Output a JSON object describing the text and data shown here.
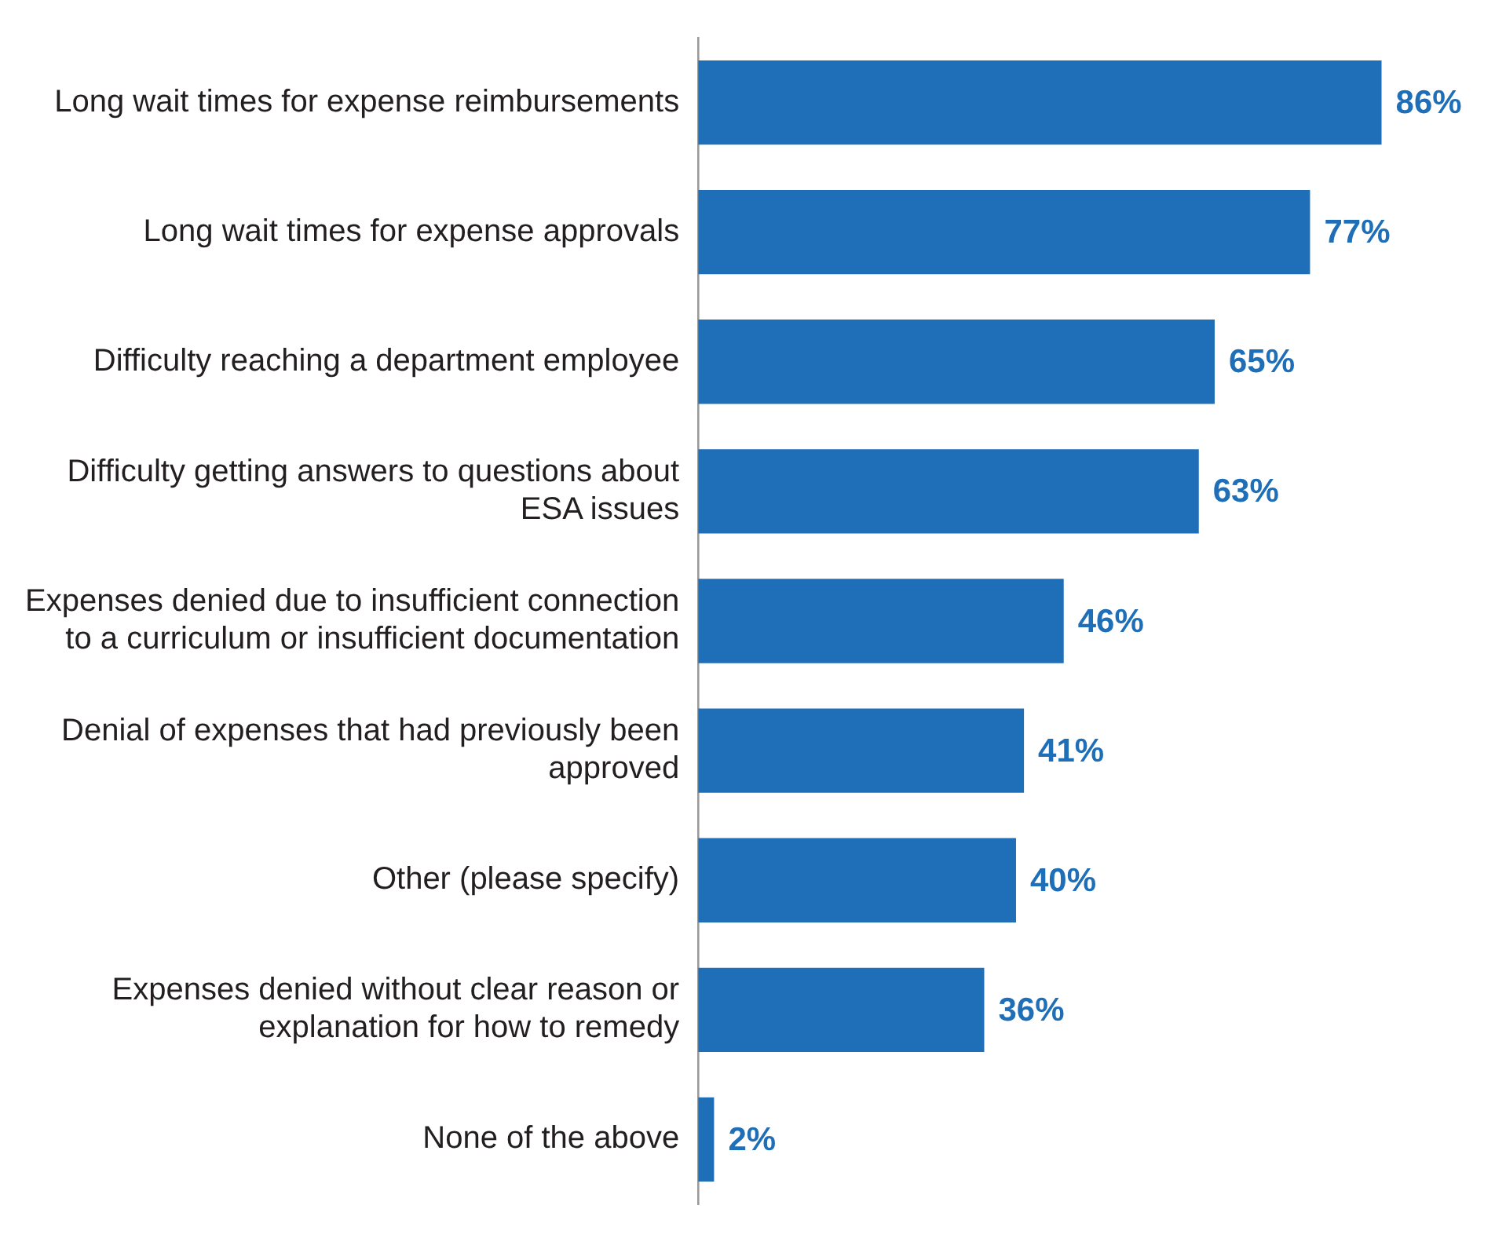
{
  "chart_data": {
    "type": "bar",
    "orientation": "horizontal",
    "categories": [
      "Long wait times for expense reimbursements",
      "Long wait times for expense approvals",
      "Difficulty reaching a department employee",
      "Difficulty getting answers to questions about ESA issues",
      "Expenses denied due to insufficient connection to a curriculum or insufficient documentation",
      "Denial of expenses that had previously been approved",
      "Other (please specify)",
      "Expenses denied without clear reason or explanation for how to remedy",
      "None of the above"
    ],
    "values": [
      86,
      77,
      65,
      63,
      46,
      41,
      40,
      36,
      2
    ],
    "value_labels": [
      "86%",
      "77%",
      "65%",
      "63%",
      "46%",
      "41%",
      "40%",
      "36%",
      "2%"
    ],
    "color": "#1f6fb8",
    "tick_labels": "y",
    "legend": false
  }
}
